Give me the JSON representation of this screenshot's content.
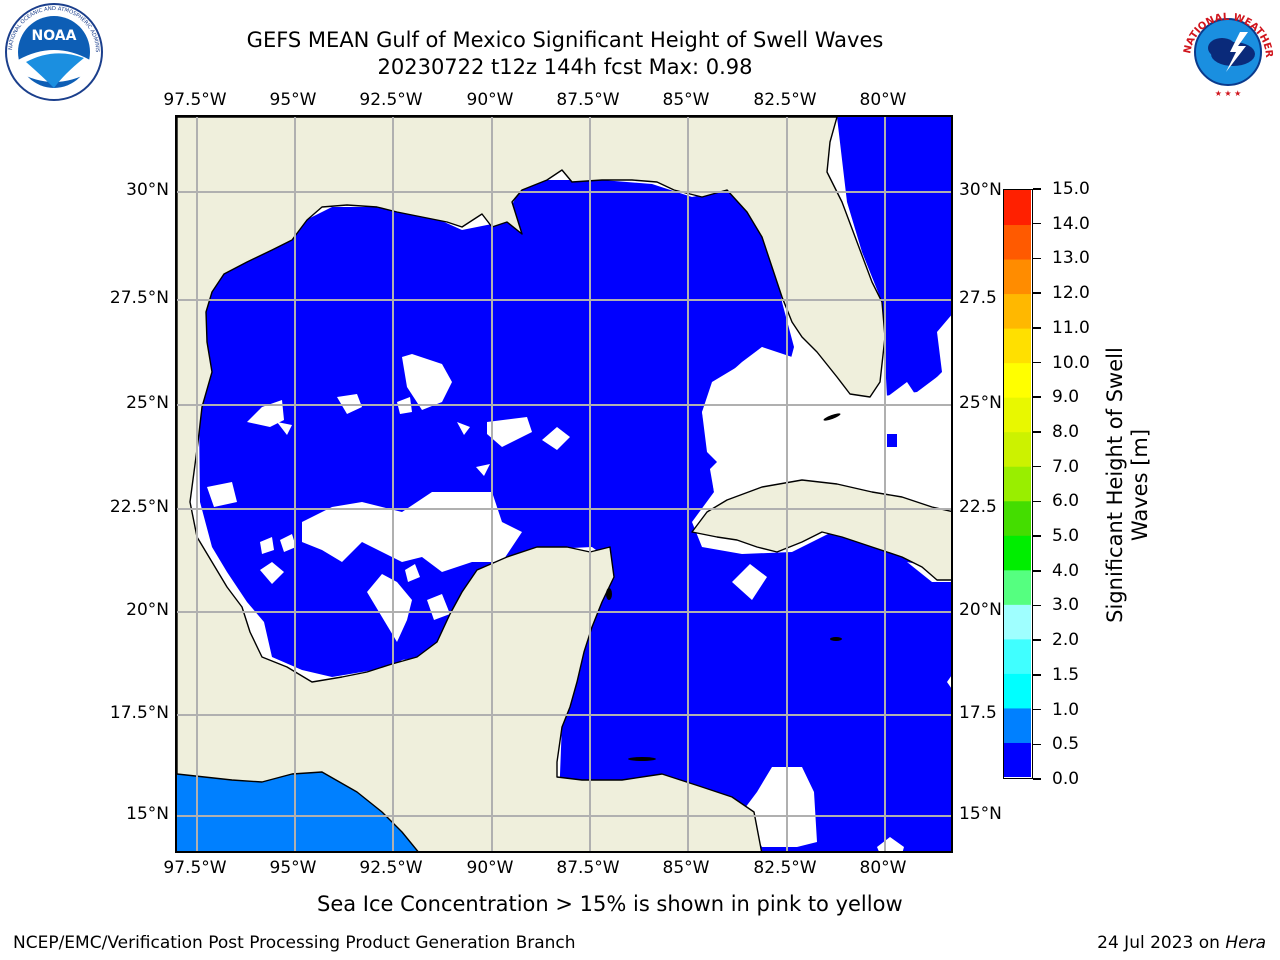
{
  "title_line1": "GEFS MEAN Gulf of Mexico Significant Height of Swell Waves",
  "title_line2": "20230722 t12z 144h fcst   Max: 0.98",
  "lon_labels": [
    "97.5°W",
    "95°W",
    "92.5°W",
    "90°W",
    "87.5°W",
    "85°W",
    "82.5°W",
    "80°W"
  ],
  "lat_labels_left": [
    "30°N",
    "27.5°N",
    "25°N",
    "22.5°N",
    "20°N",
    "17.5°N",
    "15°N"
  ],
  "lat_labels_right": [
    "30°N",
    "27.5",
    "25°N",
    "22.5",
    "20°N",
    "17.5",
    "15°N"
  ],
  "colorbar": {
    "label_line1": "Significant Height of Swell",
    "label_line2": "Waves [m]",
    "ticks": [
      "0.0",
      "0.5",
      "1.0",
      "1.5",
      "2.0",
      "3.0",
      "4.0",
      "5.0",
      "6.0",
      "7.0",
      "8.0",
      "9.0",
      "10.0",
      "11.0",
      "12.0",
      "13.0",
      "14.0",
      "15.0"
    ],
    "colors": [
      "#0000ff",
      "#0080ff",
      "#00ffff",
      "#40ffff",
      "#9fffff",
      "#55ff80",
      "#00ee00",
      "#44dd00",
      "#99ee00",
      "#ccf200",
      "#e8f800",
      "#ffff00",
      "#ffe000",
      "#ffb800",
      "#ff8c00",
      "#ff5a00",
      "#ff2000"
    ]
  },
  "colors": {
    "land": "#efefdc",
    "wave_low": "#0000ff",
    "wave_mid": "#0080ff",
    "gridline": "#b0b0b0"
  },
  "ice_note": "Sea Ice Concentration > 15% is shown in pink to yellow",
  "footer_left": "NCEP/EMC/Verification Post Processing Product Generation Branch",
  "footer_date": "24 Jul 2023 on ",
  "footer_machine": "Hera",
  "logos": {
    "noaa": "NOAA",
    "noaa_ring": "NATIONAL OCEANIC AND ATMOSPHERIC ADMINISTRATION · U.S. DEPARTMENT OF COMMERCE",
    "nws_ring": "NATIONAL WEATHER SERVICE"
  }
}
